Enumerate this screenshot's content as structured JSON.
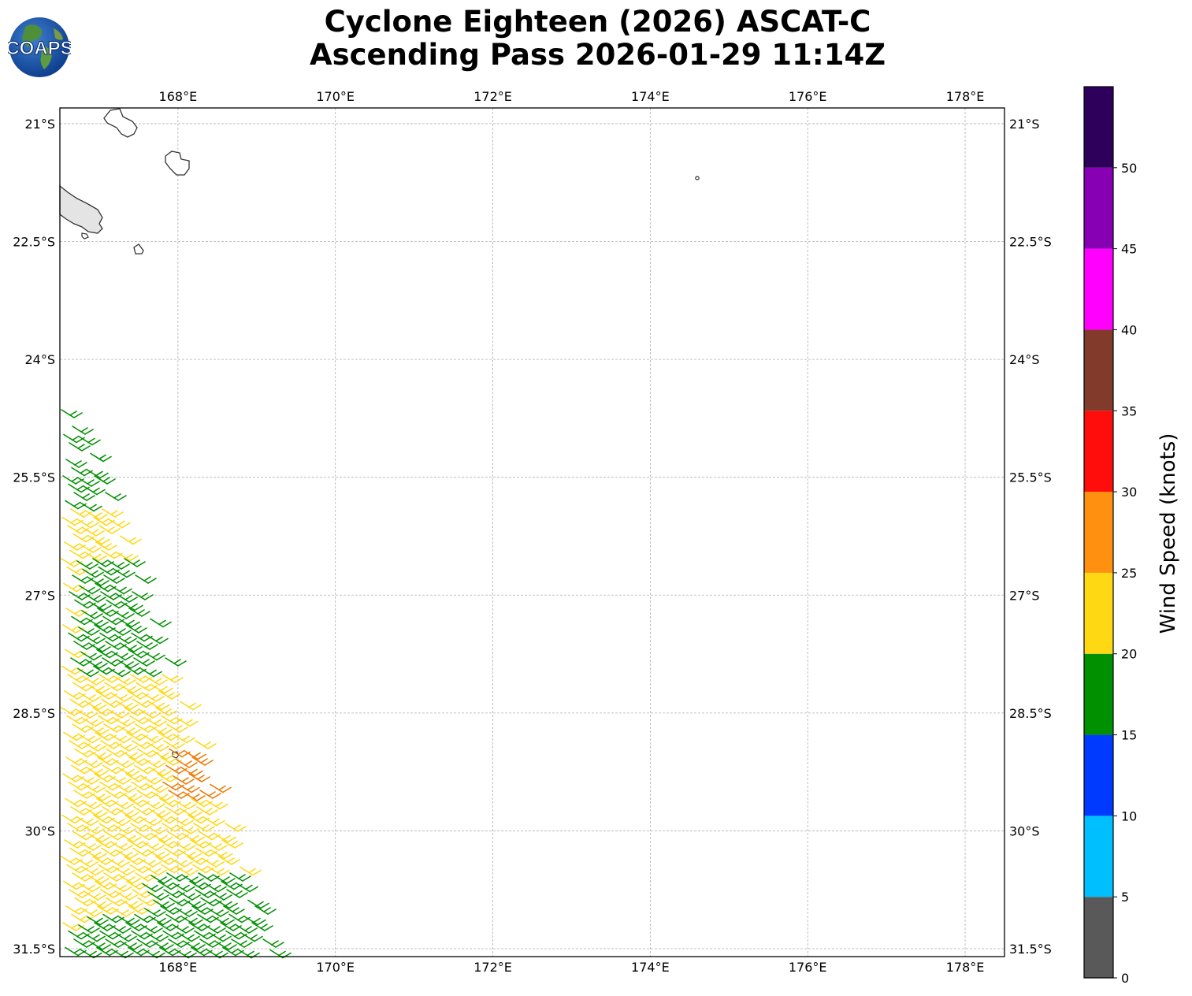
{
  "logo": {
    "text": "COAPS"
  },
  "title": {
    "line1": "Cyclone Eighteen (2026) ASCAT-C",
    "line2": "Ascending Pass 2026-01-29 11:14Z"
  },
  "map": {
    "lon_range": [
      166.5,
      178.5
    ],
    "lat_range": [
      -31.6,
      -20.8
    ],
    "lon_ticks": [
      {
        "value": 168,
        "label": "168°E"
      },
      {
        "value": 170,
        "label": "170°E"
      },
      {
        "value": 172,
        "label": "172°E"
      },
      {
        "value": 174,
        "label": "174°E"
      },
      {
        "value": 176,
        "label": "176°E"
      },
      {
        "value": 178,
        "label": "178°E"
      }
    ],
    "lat_ticks": [
      {
        "value": -21,
        "label": "21°S"
      },
      {
        "value": -22.5,
        "label": "22.5°S"
      },
      {
        "value": -24,
        "label": "24°S"
      },
      {
        "value": -25.5,
        "label": "25.5°S"
      },
      {
        "value": -27,
        "label": "27°S"
      },
      {
        "value": -28.5,
        "label": "28.5°S"
      },
      {
        "value": -30,
        "label": "30°S"
      },
      {
        "value": -31.5,
        "label": "31.5°S"
      }
    ],
    "gridlines": true,
    "swath_edge_note_colors": {
      "green": "#009000",
      "yellow": "#ffd814",
      "orange": "#f07800"
    }
  },
  "colorbar": {
    "label": "Wind Speed (knots)",
    "bins": [
      {
        "min": 0,
        "max": 5,
        "color": "#595959"
      },
      {
        "min": 5,
        "max": 10,
        "color": "#00bfff"
      },
      {
        "min": 10,
        "max": 15,
        "color": "#0039ff"
      },
      {
        "min": 15,
        "max": 20,
        "color": "#009000"
      },
      {
        "min": 20,
        "max": 25,
        "color": "#ffd814"
      },
      {
        "min": 25,
        "max": 30,
        "color": "#ff9010"
      },
      {
        "min": 30,
        "max": 35,
        "color": "#ff0d0d"
      },
      {
        "min": 35,
        "max": 40,
        "color": "#823a2a"
      },
      {
        "min": 40,
        "max": 45,
        "color": "#ff00ff"
      },
      {
        "min": 45,
        "max": 50,
        "color": "#8700b4"
      },
      {
        "min": 50,
        "max": 55,
        "color": "#2f005b"
      }
    ],
    "tick_labels": [
      "0",
      "5",
      "10",
      "15",
      "20",
      "25",
      "30",
      "35",
      "40",
      "45",
      "50"
    ]
  }
}
